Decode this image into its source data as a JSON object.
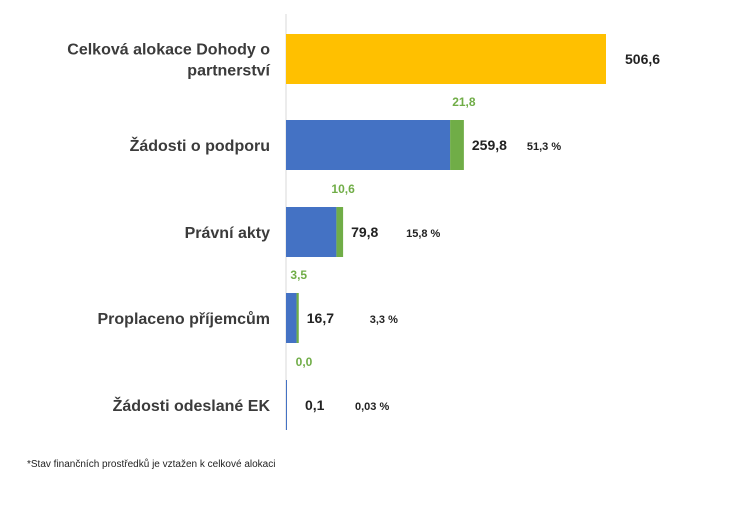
{
  "chart_data": {
    "type": "bar",
    "orientation": "horizontal",
    "stacked": true,
    "categories": [
      "Celková alokace Dohody o partnerství",
      "Žádosti o podporu",
      "Právní akty",
      "Proplaceno příjemcům",
      "Žádosti odeslané EK"
    ],
    "category_lines": [
      [
        "Celková alokace Dohody o",
        "partnerství"
      ],
      [
        "Žádosti o podporu"
      ],
      [
        "Právní akty"
      ],
      [
        "Proplaceno příjemcům"
      ],
      [
        "Žádosti odeslané EK"
      ]
    ],
    "series": [
      {
        "values": [
          506.6,
          259.8,
          79.8,
          16.7,
          0.1
        ],
        "labels": [
          "506,6",
          "259,8",
          "79,8",
          "16,7",
          "0,1"
        ]
      },
      {
        "values": [
          null,
          21.8,
          10.6,
          3.5,
          0.0
        ],
        "labels": [
          "",
          "21,8",
          "10,6",
          "3,5",
          "0,0"
        ]
      }
    ],
    "percentages": [
      "",
      "51,3 %",
      "15,8 %",
      "3,3 %",
      "0,03 %"
    ],
    "xlim": [
      0,
      506.6
    ],
    "grid": false,
    "legend": "none",
    "colors": {
      "allocation": "#ffc000",
      "main": "#4472c4",
      "green": "#70ad47",
      "axis": "#d9d9d9"
    }
  },
  "footnote": "*Stav finančních prostředků je vztažen k celkové alokaci"
}
